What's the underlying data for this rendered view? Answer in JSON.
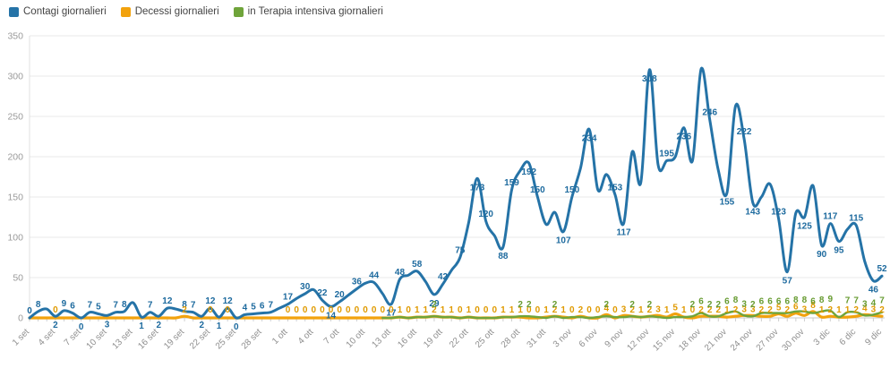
{
  "chart_data": {
    "type": "line",
    "title": "",
    "xlabel": "",
    "ylabel": "",
    "ylim": [
      0,
      350
    ],
    "y_ticks": [
      0,
      50,
      100,
      150,
      200,
      250,
      300,
      350
    ],
    "grid": true,
    "smooth": true,
    "legend_position": "top-left",
    "x_tick_every": 3,
    "x": [
      "1 set",
      "2 set",
      "3 set",
      "4 set",
      "5 set",
      "6 set",
      "7 set",
      "8 set",
      "9 set",
      "10 set",
      "11 set",
      "12 set",
      "13 set",
      "14 set",
      "15 set",
      "16 set",
      "17 set",
      "18 set",
      "19 set",
      "20 set",
      "21 set",
      "22 set",
      "23 set",
      "24 set",
      "25 set",
      "26 set",
      "27 set",
      "28 set",
      "29 set",
      "30 set",
      "1 ott",
      "2 ott",
      "3 ott",
      "4 ott",
      "5 ott",
      "6 ott",
      "7 ott",
      "8 ott",
      "9 ott",
      "10 ott",
      "11 ott",
      "12 ott",
      "13 ott",
      "14 ott",
      "15 ott",
      "16 ott",
      "17 ott",
      "18 ott",
      "19 ott",
      "20 ott",
      "21 ott",
      "22 ott",
      "23 ott",
      "24 ott",
      "25 ott",
      "26 ott",
      "27 ott",
      "28 ott",
      "29 ott",
      "30 ott",
      "31 ott",
      "1 nov",
      "2 nov",
      "3 nov",
      "4 nov",
      "5 nov",
      "6 nov",
      "7 nov",
      "8 nov",
      "9 nov",
      "10 nov",
      "11 nov",
      "12 nov",
      "13 nov",
      "14 nov",
      "15 nov",
      "16 nov",
      "17 nov",
      "18 nov",
      "19 nov",
      "20 nov",
      "21 nov",
      "22 nov",
      "23 nov",
      "24 nov",
      "25 nov",
      "26 nov",
      "27 nov",
      "28 nov",
      "29 nov",
      "30 nov",
      "1 dic",
      "2 dic",
      "3 dic",
      "4 dic",
      "5 dic",
      "6 dic",
      "7 dic",
      "8 dic",
      "9 dic"
    ],
    "series": [
      {
        "name": "Contagi giornalieri",
        "color": "#2573a7",
        "label_color": "#1d6a9e",
        "values": [
          0,
          8,
          11,
          2,
          9,
          6,
          0,
          7,
          5,
          3,
          7,
          8,
          19,
          1,
          7,
          2,
          12,
          11,
          8,
          7,
          2,
          12,
          1,
          12,
          0,
          4,
          5,
          6,
          7,
          12,
          17,
          24,
          30,
          35,
          22,
          14,
          20,
          28,
          36,
          43,
          44,
          30,
          17,
          48,
          53,
          58,
          45,
          29,
          42,
          59,
          75,
          118,
          173,
          120,
          102,
          88,
          159,
          183,
          192,
          150,
          116,
          131,
          107,
          150,
          186,
          234,
          159,
          178,
          153,
          117,
          206,
          168,
          308,
          190,
          195,
          200,
          236,
          195,
          309,
          246,
          183,
          155,
          263,
          222,
          143,
          150,
          166,
          123,
          57,
          130,
          125,
          164,
          90,
          117,
          95,
          110,
          115,
          70,
          46,
          52
        ]
      },
      {
        "name": "Decessi giornalieri",
        "color": "#f2a20d",
        "label_color": "#e09a00",
        "values": [
          0,
          0,
          0,
          0,
          0,
          0,
          0,
          0,
          0,
          0,
          0,
          0,
          0,
          0,
          0,
          0,
          0,
          0,
          2,
          0,
          0,
          0,
          0,
          0,
          0,
          0,
          0,
          0,
          0,
          0,
          0,
          0,
          0,
          0,
          0,
          0,
          0,
          0,
          0,
          0,
          0,
          0,
          0,
          1,
          0,
          1,
          1,
          2,
          1,
          1,
          0,
          1,
          0,
          0,
          0,
          1,
          1,
          1,
          0,
          0,
          1,
          2,
          1,
          0,
          2,
          0,
          0,
          4,
          0,
          3,
          2,
          1,
          2,
          3,
          1,
          5,
          1,
          0,
          2,
          2,
          2,
          1,
          2,
          3,
          3,
          2,
          2,
          5,
          2,
          6,
          3,
          8,
          1,
          2,
          1,
          1,
          2,
          4,
          3,
          2
        ]
      },
      {
        "name": "in Terapia intensiva giornalieri",
        "color": "#6fa43a",
        "label_color": "#679b31",
        "values": [
          null,
          null,
          null,
          null,
          null,
          null,
          null,
          null,
          null,
          null,
          null,
          null,
          null,
          null,
          null,
          null,
          null,
          null,
          null,
          null,
          null,
          null,
          null,
          null,
          null,
          null,
          null,
          null,
          null,
          null,
          null,
          null,
          null,
          null,
          null,
          null,
          null,
          null,
          null,
          null,
          null,
          0,
          0,
          1,
          0,
          1,
          1,
          2,
          1,
          1,
          0,
          1,
          0,
          0,
          0,
          1,
          1,
          2,
          2,
          1,
          0,
          2,
          0,
          1,
          1,
          0,
          1,
          2,
          1,
          1,
          2,
          1,
          2,
          1,
          0,
          1,
          1,
          2,
          6,
          2,
          2,
          6,
          8,
          3,
          2,
          6,
          6,
          6,
          6,
          8,
          8,
          6,
          8,
          9,
          1,
          7,
          7,
          3,
          4,
          7
        ]
      }
    ]
  }
}
